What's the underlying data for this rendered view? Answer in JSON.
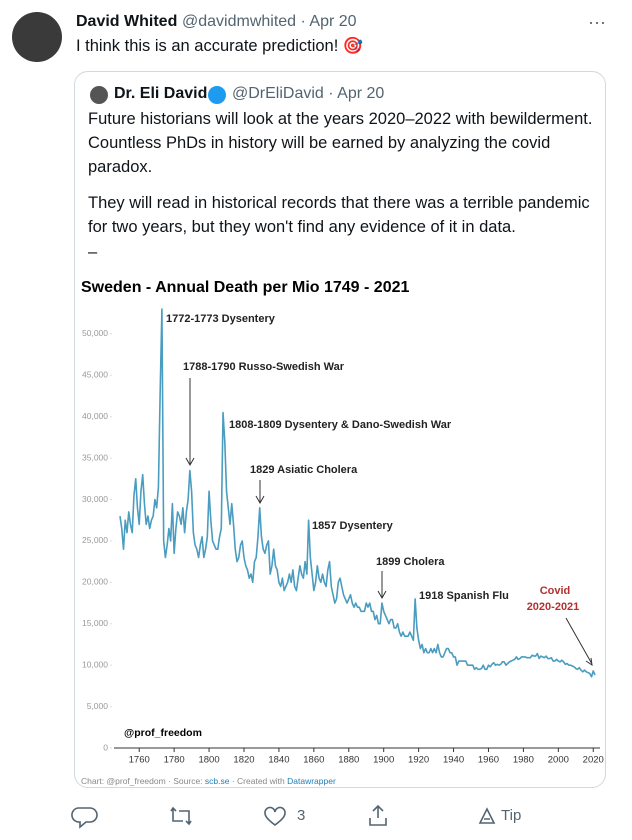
{
  "tweet": {
    "name": "David Whited",
    "handle": "@davidmwhited · Apr 20",
    "text": "I think this is an accurate prediction! 🎯",
    "more": "···"
  },
  "quote": {
    "name": "Dr. Eli David",
    "handle": "@DrEliDavid · Apr 20",
    "paragraphs": [
      "Future historians will look at the years 2020–2022 with bewilderment. Countless PhDs in history will be earned by analyzing the covid paradox.",
      "They will read in historical records that there was a terrible pandemic for two years, but they won't find any evidence of it in data.",
      "–"
    ]
  },
  "actions": {
    "likes": 3,
    "tip": "Tip"
  },
  "chart_data": {
    "type": "line",
    "title": "Sweden - Annual Death per Mio 1749 - 2021",
    "credit": "@prof_freedom",
    "footer": [
      "Chart: @prof_freedom · Source: ",
      "scb.se",
      " · Created with ",
      "Datawrapper"
    ],
    "annotations": [
      "1772-1773 Dysentery",
      "1788-1790 Russo-Swedish War",
      "1808-1809 Dysentery & Dano-Swedish War",
      "1829 Asiatic Cholera",
      "1857 Dysentery",
      "1899 Cholera",
      "1918 Spanish Flu",
      "Covid",
      "2020-2021"
    ],
    "xlim": [
      1749,
      2021
    ],
    "xticks": [
      1760,
      1780,
      1800,
      1820,
      1840,
      1860,
      1880,
      1900,
      1920,
      1940,
      1960,
      1980,
      2000,
      2020
    ],
    "ylim": [
      0,
      53000
    ],
    "yticks": [
      0,
      {
        "value": 5000,
        "label": "5,000"
      },
      {
        "value": 10000,
        "label": "10,000"
      },
      {
        "value": 15000,
        "label": "15,000"
      },
      {
        "value": 20000,
        "label": "20,000"
      },
      {
        "value": 25000,
        "label": "25,000"
      },
      {
        "value": 30000,
        "label": "30,000"
      },
      {
        "value": 35000,
        "label": "35,000"
      },
      {
        "value": 40000,
        "label": "40,000"
      },
      {
        "value": 45000,
        "label": "45,000"
      },
      {
        "value": 50000,
        "label": "50,000"
      }
    ],
    "grid": false,
    "color": "#4a9cc0",
    "x": [
      1749,
      1750,
      1751,
      1752,
      1753,
      1754,
      1755,
      1756,
      1757,
      1758,
      1759,
      1760,
      1761,
      1762,
      1763,
      1764,
      1765,
      1766,
      1767,
      1768,
      1769,
      1770,
      1771,
      1772,
      1773,
      1774,
      1775,
      1776,
      1777,
      1778,
      1779,
      1780,
      1781,
      1782,
      1783,
      1784,
      1785,
      1786,
      1787,
      1788,
      1789,
      1790,
      1791,
      1792,
      1793,
      1794,
      1795,
      1796,
      1797,
      1798,
      1799,
      1800,
      1801,
      1802,
      1803,
      1804,
      1805,
      1806,
      1807,
      1808,
      1809,
      1810,
      1811,
      1812,
      1813,
      1814,
      1815,
      1816,
      1817,
      1818,
      1819,
      1820,
      1821,
      1822,
      1823,
      1824,
      1825,
      1826,
      1827,
      1828,
      1829,
      1830,
      1831,
      1832,
      1833,
      1834,
      1835,
      1836,
      1837,
      1838,
      1839,
      1840,
      1841,
      1842,
      1843,
      1844,
      1845,
      1846,
      1847,
      1848,
      1849,
      1850,
      1851,
      1852,
      1853,
      1854,
      1855,
      1856,
      1857,
      1858,
      1859,
      1860,
      1861,
      1862,
      1863,
      1864,
      1865,
      1866,
      1867,
      1868,
      1869,
      1870,
      1871,
      1872,
      1873,
      1874,
      1875,
      1876,
      1877,
      1878,
      1879,
      1880,
      1881,
      1882,
      1883,
      1884,
      1885,
      1886,
      1887,
      1888,
      1889,
      1890,
      1891,
      1892,
      1893,
      1894,
      1895,
      1896,
      1897,
      1898,
      1899,
      1900,
      1901,
      1902,
      1903,
      1904,
      1905,
      1906,
      1907,
      1908,
      1909,
      1910,
      1911,
      1912,
      1913,
      1914,
      1915,
      1916,
      1917,
      1918,
      1919,
      1920,
      1921,
      1922,
      1923,
      1924,
      1925,
      1926,
      1927,
      1928,
      1929,
      1930,
      1931,
      1932,
      1933,
      1934,
      1935,
      1936,
      1937,
      1938,
      1939,
      1940,
      1941,
      1942,
      1943,
      1944,
      1945,
      1946,
      1947,
      1948,
      1949,
      1950,
      1951,
      1952,
      1953,
      1954,
      1955,
      1956,
      1957,
      1958,
      1959,
      1960,
      1961,
      1962,
      1963,
      1964,
      1965,
      1966,
      1967,
      1968,
      1969,
      1970,
      1971,
      1972,
      1973,
      1974,
      1975,
      1976,
      1977,
      1978,
      1979,
      1980,
      1981,
      1982,
      1983,
      1984,
      1985,
      1986,
      1987,
      1988,
      1989,
      1990,
      1991,
      1992,
      1993,
      1994,
      1995,
      1996,
      1997,
      1998,
      1999,
      2000,
      2001,
      2002,
      2003,
      2004,
      2005,
      2006,
      2007,
      2008,
      2009,
      2010,
      2011,
      2012,
      2013,
      2014,
      2015,
      2016,
      2017,
      2018,
      2019,
      2020,
      2021
    ],
    "values": [
      28000,
      26500,
      24000,
      27500,
      26000,
      28500,
      27000,
      26000,
      30500,
      32500,
      29000,
      27000,
      31000,
      33000,
      29500,
      27000,
      28000,
      26500,
      27500,
      28000,
      30000,
      29000,
      31500,
      43000,
      53000,
      25000,
      23000,
      24500,
      26500,
      25000,
      29500,
      23500,
      26500,
      28500,
      28000,
      27000,
      29000,
      26000,
      28500,
      30000,
      33500,
      31000,
      26000,
      24500,
      24000,
      23000,
      24500,
      25500,
      23000,
      24000,
      25500,
      31000,
      27500,
      25000,
      24500,
      24000,
      24000,
      25500,
      26500,
      40500,
      37000,
      31000,
      29000,
      27000,
      29500,
      27000,
      24000,
      22500,
      23000,
      24500,
      25000,
      23000,
      22000,
      21500,
      20500,
      21000,
      20000,
      22500,
      23000,
      25500,
      29000,
      25500,
      24000,
      23500,
      24500,
      25000,
      21000,
      22000,
      24000,
      22000,
      21500,
      20000,
      19500,
      20500,
      19000,
      19500,
      20000,
      21000,
      20000,
      21500,
      19500,
      19000,
      20500,
      22000,
      21000,
      20500,
      22500,
      21000,
      27500,
      23000,
      21000,
      19000,
      20000,
      22000,
      20500,
      20000,
      21000,
      20000,
      19500,
      21500,
      22500,
      19500,
      18500,
      17500,
      18000,
      20000,
      20500,
      19500,
      18500,
      18000,
      17500,
      18000,
      18500,
      17500,
      17000,
      17500,
      17000,
      17000,
      16500,
      16500,
      16500,
      17500,
      17000,
      17500,
      16500,
      16500,
      15500,
      16000,
      15000,
      15000,
      17500,
      16500,
      16000,
      15500,
      15000,
      15500,
      15500,
      14500,
      14500,
      15000,
      14000,
      13500,
      14000,
      13500,
      13500,
      13500,
      14000,
      13500,
      13000,
      18000,
      14500,
      13000,
      12000,
      12500,
      11500,
      12000,
      11500,
      11500,
      12000,
      11500,
      12000,
      11500,
      12500,
      11500,
      11000,
      11000,
      11500,
      12000,
      12000,
      11500,
      11500,
      11000,
      11000,
      10000,
      10500,
      10500,
      10500,
      10500,
      10500,
      10000,
      10000,
      10000,
      10000,
      9500,
      9700,
      9500,
      9500,
      9600,
      10000,
      9500,
      9500,
      10000,
      9800,
      10100,
      10300,
      10000,
      10100,
      10000,
      10100,
      10400,
      10400,
      10000,
      10200,
      10400,
      10500,
      10600,
      10700,
      11000,
      10700,
      10800,
      11000,
      11000,
      11000,
      10900,
      10900,
      10900,
      11200,
      11100,
      11100,
      11400,
      10800,
      11100,
      11000,
      10900,
      11100,
      10800,
      10800,
      10900,
      10500,
      10500,
      10700,
      10500,
      10400,
      10600,
      10400,
      10100,
      10200,
      10000,
      10000,
      9900,
      9800,
      9600,
      9500,
      9700,
      9400,
      9200,
      9400,
      9200,
      9100,
      9000,
      8600,
      9300,
      8800
    ]
  }
}
